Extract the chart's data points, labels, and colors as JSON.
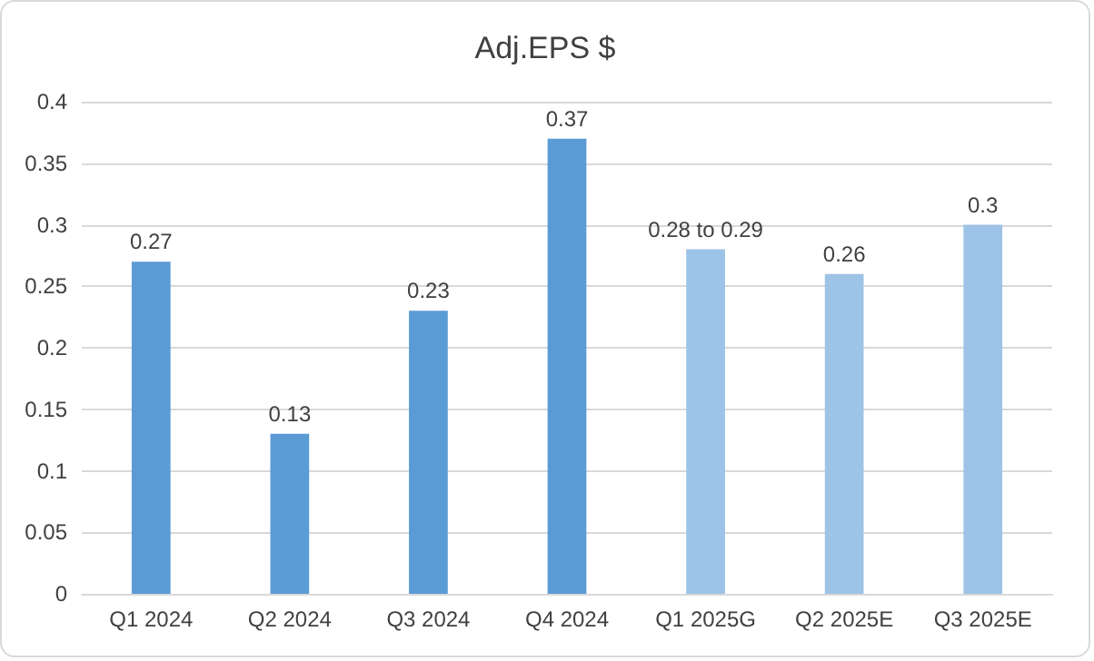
{
  "chart_data": {
    "type": "bar",
    "title": "Adj.EPS $",
    "categories": [
      "Q1 2024",
      "Q2 2024",
      "Q3 2024",
      "Q4 2024",
      "Q1 2025G",
      "Q2 2025E",
      "Q3 2025E"
    ],
    "values": [
      0.27,
      0.13,
      0.23,
      0.37,
      0.28,
      0.26,
      0.3
    ],
    "colors": [
      "#5b9bd5",
      "#5b9bd5",
      "#5b9bd5",
      "#5b9bd5",
      "#9dc3e6",
      "#9dc3e6",
      "#9dc3e6"
    ],
    "value_labels": [
      "0.27",
      "0.13",
      "0.23",
      "0.37",
      "0.28 to 0.29",
      "0.26",
      "0.3"
    ],
    "ylim": [
      0,
      0.4
    ],
    "yticks": [
      0,
      0.05,
      0.1,
      0.15,
      0.2,
      0.25,
      0.3,
      0.35,
      0.4
    ],
    "grid": "y"
  }
}
